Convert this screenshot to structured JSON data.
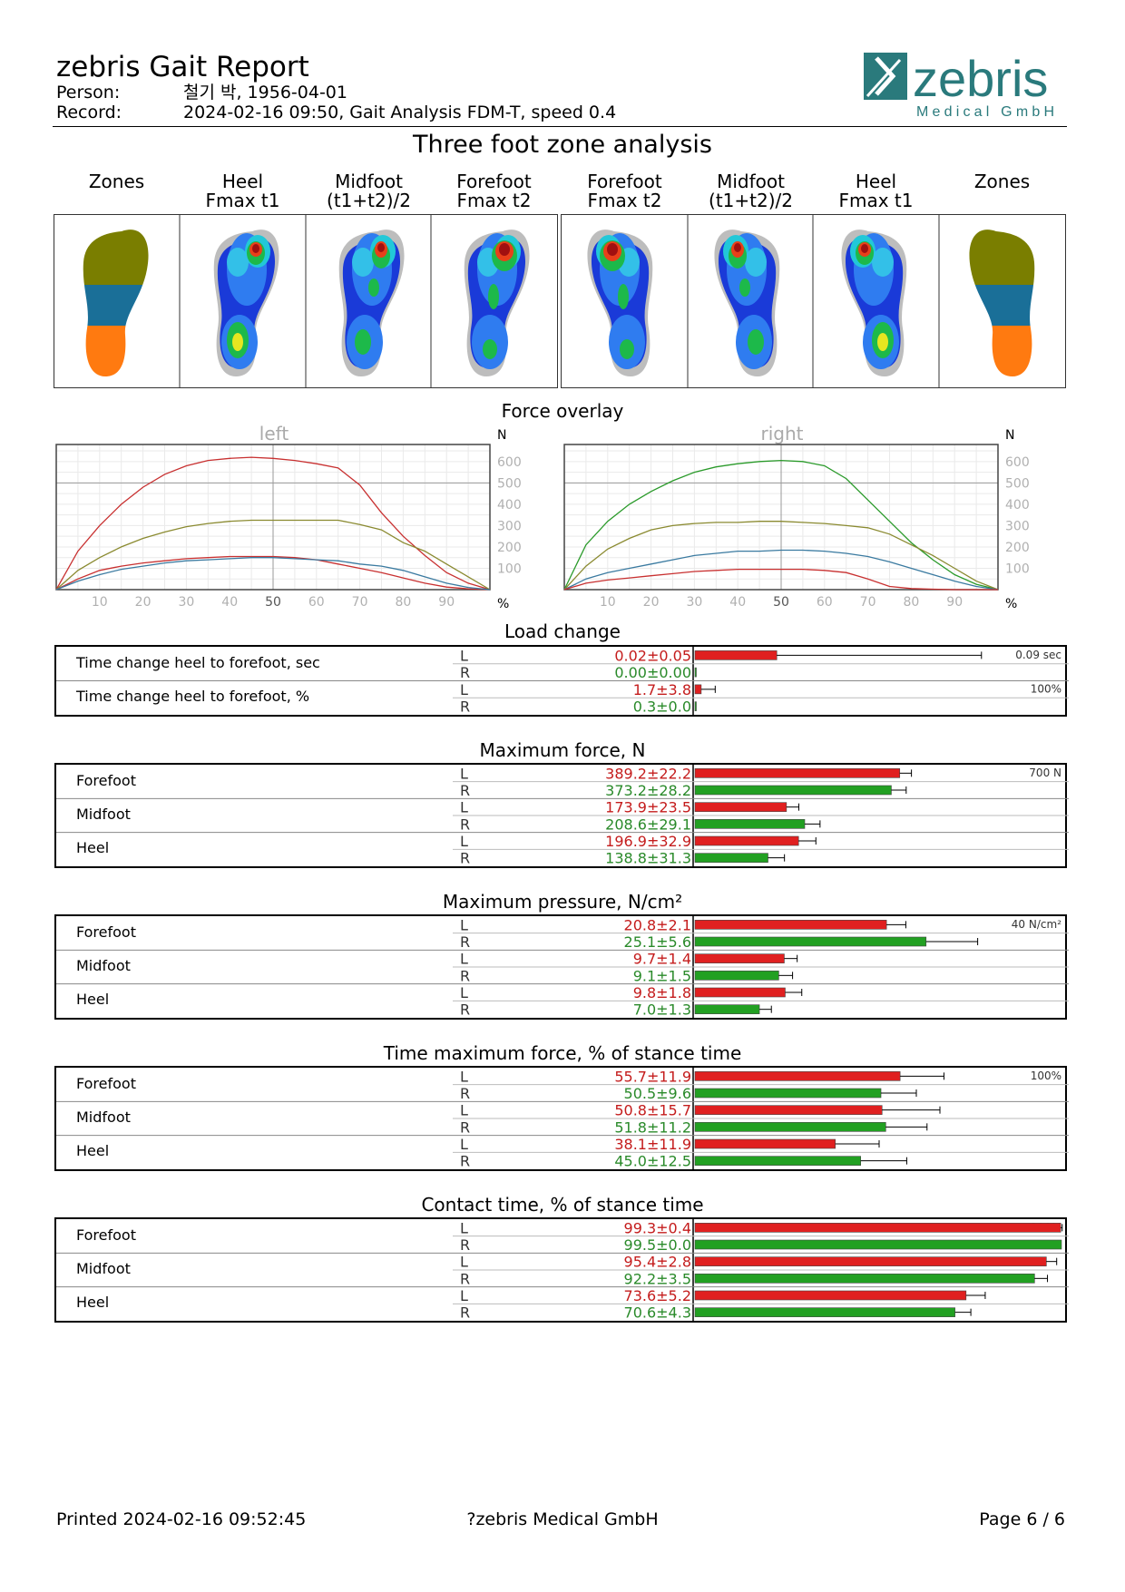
{
  "header": {
    "title": "zebris Gait Report",
    "person_label": "Person:",
    "person_value": "철기 박, 1956-04-01",
    "record_label": "Record:",
    "record_value": "2024-02-16 09:50, Gait Analysis FDM-T, speed 0.4"
  },
  "logo": {
    "name": "zebris",
    "subtitle": "Medical GmbH",
    "color": "#2a7a7c"
  },
  "zone_analysis": {
    "title": "Three foot zone analysis",
    "columns": [
      {
        "title": "Zones",
        "sub": ""
      },
      {
        "title": "Heel",
        "sub": "Fmax t1"
      },
      {
        "title": "Midfoot",
        "sub": "(t1+t2)/2"
      },
      {
        "title": "Forefoot",
        "sub": "Fmax t2"
      },
      {
        "title": "Forefoot",
        "sub": "Fmax t2"
      },
      {
        "title": "Midfoot",
        "sub": "(t1+t2)/2"
      },
      {
        "title": "Heel",
        "sub": "Fmax t1"
      },
      {
        "title": "Zones",
        "sub": ""
      }
    ],
    "zone_colors": {
      "forefoot": "#7a7e00",
      "midfoot": "#1a6f98",
      "heel": "#ff7a10"
    }
  },
  "force_overlay": {
    "title": "Force overlay",
    "y_unit": "N",
    "x_unit": "%",
    "left_title": "left",
    "right_title": "right"
  },
  "chart_data": [
    {
      "type": "line",
      "title": "left",
      "xlabel": "%",
      "ylabel": "N",
      "xlim": [
        0,
        100
      ],
      "ylim": [
        0,
        680
      ],
      "xticks": [
        10,
        20,
        30,
        40,
        50,
        60,
        70,
        80,
        90
      ],
      "yticks": [
        100,
        200,
        300,
        400,
        500,
        600
      ],
      "x": [
        0,
        5,
        10,
        15,
        20,
        25,
        30,
        35,
        40,
        45,
        50,
        55,
        60,
        65,
        70,
        75,
        80,
        85,
        90,
        95,
        100
      ],
      "series": [
        {
          "color": "#c83030",
          "values": [
            0,
            180,
            300,
            400,
            480,
            540,
            580,
            605,
            615,
            620,
            615,
            605,
            590,
            570,
            490,
            360,
            250,
            160,
            80,
            30,
            0
          ]
        },
        {
          "color": "#8a8a30",
          "values": [
            0,
            90,
            150,
            200,
            240,
            270,
            295,
            310,
            320,
            325,
            325,
            325,
            325,
            325,
            305,
            280,
            220,
            180,
            120,
            60,
            0
          ]
        },
        {
          "color": "#c83030",
          "values": [
            0,
            50,
            90,
            110,
            125,
            135,
            145,
            150,
            155,
            155,
            155,
            150,
            140,
            120,
            100,
            80,
            55,
            30,
            12,
            4,
            0
          ]
        },
        {
          "color": "#3a7aa0",
          "values": [
            0,
            40,
            70,
            95,
            110,
            125,
            135,
            140,
            145,
            150,
            150,
            145,
            140,
            135,
            120,
            110,
            90,
            60,
            30,
            10,
            0
          ]
        }
      ]
    },
    {
      "type": "line",
      "title": "right",
      "xlabel": "%",
      "ylabel": "N",
      "xlim": [
        0,
        100
      ],
      "ylim": [
        0,
        680
      ],
      "xticks": [
        10,
        20,
        30,
        40,
        50,
        60,
        70,
        80,
        90
      ],
      "yticks": [
        100,
        200,
        300,
        400,
        500,
        600
      ],
      "x": [
        0,
        5,
        10,
        15,
        20,
        25,
        30,
        35,
        40,
        45,
        50,
        55,
        60,
        65,
        70,
        75,
        80,
        85,
        90,
        95,
        100
      ],
      "series": [
        {
          "color": "#2a9a2a",
          "values": [
            0,
            210,
            320,
            400,
            460,
            510,
            550,
            575,
            590,
            600,
            605,
            600,
            580,
            520,
            420,
            320,
            220,
            140,
            70,
            25,
            0
          ]
        },
        {
          "color": "#8a8a30",
          "values": [
            0,
            110,
            190,
            240,
            280,
            300,
            310,
            315,
            315,
            320,
            320,
            315,
            310,
            300,
            290,
            260,
            210,
            160,
            100,
            40,
            0
          ]
        },
        {
          "color": "#3a7aa0",
          "values": [
            0,
            50,
            80,
            100,
            120,
            140,
            160,
            170,
            180,
            180,
            185,
            185,
            180,
            170,
            155,
            130,
            100,
            70,
            40,
            15,
            0
          ]
        },
        {
          "color": "#c83030",
          "values": [
            0,
            30,
            45,
            55,
            65,
            75,
            85,
            90,
            95,
            95,
            95,
            95,
            90,
            80,
            50,
            15,
            5,
            2,
            0,
            0,
            0
          ]
        }
      ]
    },
    {
      "type": "bar",
      "title": "Load change",
      "groups": [
        {
          "label": "Time change heel to forefoot, sec",
          "scale_max": 0.09,
          "scale_label": "0.09 sec",
          "L": {
            "text": "0.02±0.05",
            "mean": 0.02,
            "sd": 0.05
          },
          "R": {
            "text": "0.00±0.00",
            "mean": 0.0,
            "sd": 0.0
          }
        },
        {
          "label": "Time change heel to forefoot, %",
          "scale_max": 100,
          "scale_label": "100%",
          "L": {
            "text": "1.7±3.8",
            "mean": 1.7,
            "sd": 3.8
          },
          "R": {
            "text": "0.3±0.0",
            "mean": 0.3,
            "sd": 0.0
          }
        }
      ]
    },
    {
      "type": "bar",
      "title": "Maximum force, N",
      "scale_max": 700,
      "scale_label": "700 N",
      "groups": [
        {
          "label": "Forefoot",
          "L": {
            "text": "389.2±22.2",
            "mean": 389.2,
            "sd": 22.2
          },
          "R": {
            "text": "373.2±28.2",
            "mean": 373.2,
            "sd": 28.2
          }
        },
        {
          "label": "Midfoot",
          "L": {
            "text": "173.9±23.5",
            "mean": 173.9,
            "sd": 23.5
          },
          "R": {
            "text": "208.6±29.1",
            "mean": 208.6,
            "sd": 29.1
          }
        },
        {
          "label": "Heel",
          "L": {
            "text": "196.9±32.9",
            "mean": 196.9,
            "sd": 32.9
          },
          "R": {
            "text": "138.8±31.3",
            "mean": 138.8,
            "sd": 31.3
          }
        }
      ]
    },
    {
      "type": "bar",
      "title": "Maximum pressure, N/cm²",
      "scale_max": 40,
      "scale_label": "40 N/cm²",
      "groups": [
        {
          "label": "Forefoot",
          "L": {
            "text": "20.8±2.1",
            "mean": 20.8,
            "sd": 2.1
          },
          "R": {
            "text": "25.1±5.6",
            "mean": 25.1,
            "sd": 5.6
          }
        },
        {
          "label": "Midfoot",
          "L": {
            "text": "9.7±1.4",
            "mean": 9.7,
            "sd": 1.4
          },
          "R": {
            "text": "9.1±1.5",
            "mean": 9.1,
            "sd": 1.5
          }
        },
        {
          "label": "Heel",
          "L": {
            "text": "9.8±1.8",
            "mean": 9.8,
            "sd": 1.8
          },
          "R": {
            "text": "7.0±1.3",
            "mean": 7.0,
            "sd": 1.3
          }
        }
      ]
    },
    {
      "type": "bar",
      "title": "Time maximum force,  % of stance time",
      "scale_max": 100,
      "scale_label": "100%",
      "groups": [
        {
          "label": "Forefoot",
          "L": {
            "text": "55.7±11.9",
            "mean": 55.7,
            "sd": 11.9
          },
          "R": {
            "text": "50.5±9.6",
            "mean": 50.5,
            "sd": 9.6
          }
        },
        {
          "label": "Midfoot",
          "L": {
            "text": "50.8±15.7",
            "mean": 50.8,
            "sd": 15.7
          },
          "R": {
            "text": "51.8±11.2",
            "mean": 51.8,
            "sd": 11.2
          }
        },
        {
          "label": "Heel",
          "L": {
            "text": "38.1±11.9",
            "mean": 38.1,
            "sd": 11.9
          },
          "R": {
            "text": "45.0±12.5",
            "mean": 45.0,
            "sd": 12.5
          }
        }
      ]
    },
    {
      "type": "bar",
      "title": "Contact time,  % of stance time",
      "scale_max": 100,
      "scale_label": "100%",
      "groups": [
        {
          "label": "Forefoot",
          "L": {
            "text": "99.3±0.4",
            "mean": 99.3,
            "sd": 0.4
          },
          "R": {
            "text": "99.5±0.0",
            "mean": 99.5,
            "sd": 0.0
          }
        },
        {
          "label": "Midfoot",
          "L": {
            "text": "95.4±2.8",
            "mean": 95.4,
            "sd": 2.8
          },
          "R": {
            "text": "92.2±3.5",
            "mean": 92.2,
            "sd": 3.5
          }
        },
        {
          "label": "Heel",
          "L": {
            "text": "73.6±5.2",
            "mean": 73.6,
            "sd": 5.2
          },
          "R": {
            "text": "70.6±4.3",
            "mean": 70.6,
            "sd": 4.3
          }
        }
      ]
    }
  ],
  "colors": {
    "left": "#e02020",
    "right": "#22a022",
    "left_text": "#c41c1c",
    "right_text": "#2a8a2a",
    "grid": "#c8c8c8"
  },
  "footer": {
    "printed": "Printed  2024-02-16 09:52:45",
    "company": "?zebris Medical GmbH",
    "page": "Page  6 / 6"
  }
}
